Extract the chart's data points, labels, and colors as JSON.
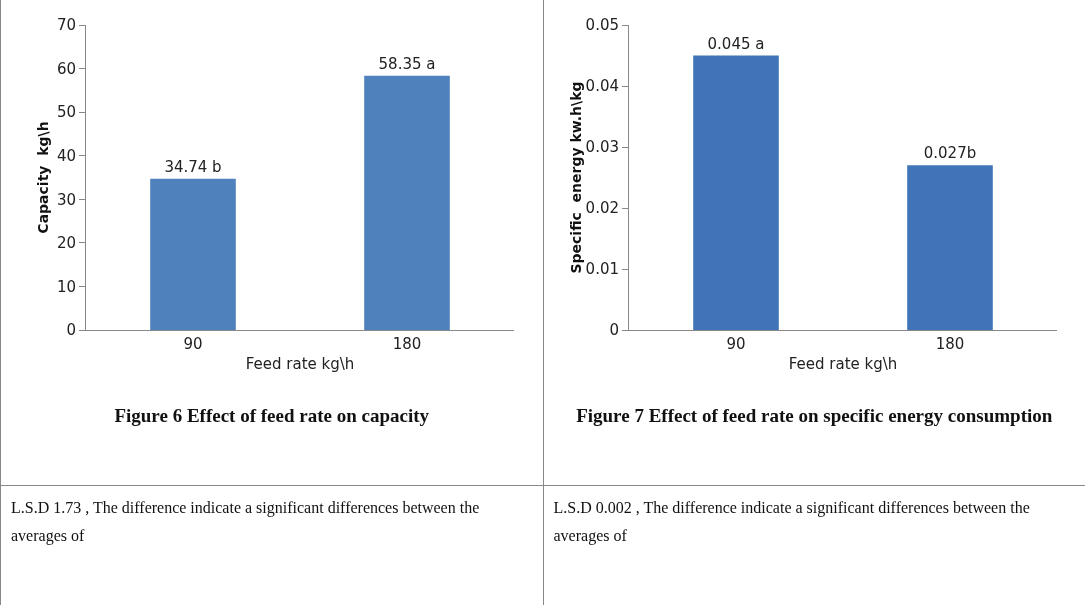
{
  "chart_data": [
    {
      "type": "bar",
      "title": "Figure 6 Effect of  feed rate on capacity",
      "xlabel": "Feed rate kg\\h",
      "ylabel": "Capacity  kg\\h",
      "categories": [
        "90",
        "180"
      ],
      "values": [
        34.74,
        58.35
      ],
      "value_labels": [
        "34.74 b",
        "58.35 a"
      ],
      "color": "#4f81bd",
      "ylim": [
        0,
        70
      ],
      "yticks": [
        0,
        10,
        20,
        30,
        40,
        50,
        60,
        70
      ],
      "grid": false,
      "annotations": [
        "L.S.D 1.73  , The difference indicate a significant differences between the averages of"
      ]
    },
    {
      "type": "bar",
      "title": "Figure 7  Effect of feed rate on specific energy consumption",
      "xlabel": "Feed rate kg\\h",
      "ylabel": "Specific  energy kw.h\\kg",
      "categories": [
        "90",
        "180"
      ],
      "values": [
        0.045,
        0.027
      ],
      "value_labels": [
        "0.045 a",
        "0.027b"
      ],
      "color": "#3f74b8",
      "ylim": [
        0,
        0.05
      ],
      "yticks": [
        0,
        0.01,
        0.02,
        0.03,
        0.04,
        0.05
      ],
      "grid": false,
      "annotations": [
        "L.S.D 0.002  , The difference indicate a significant differences between the averages of"
      ]
    }
  ]
}
